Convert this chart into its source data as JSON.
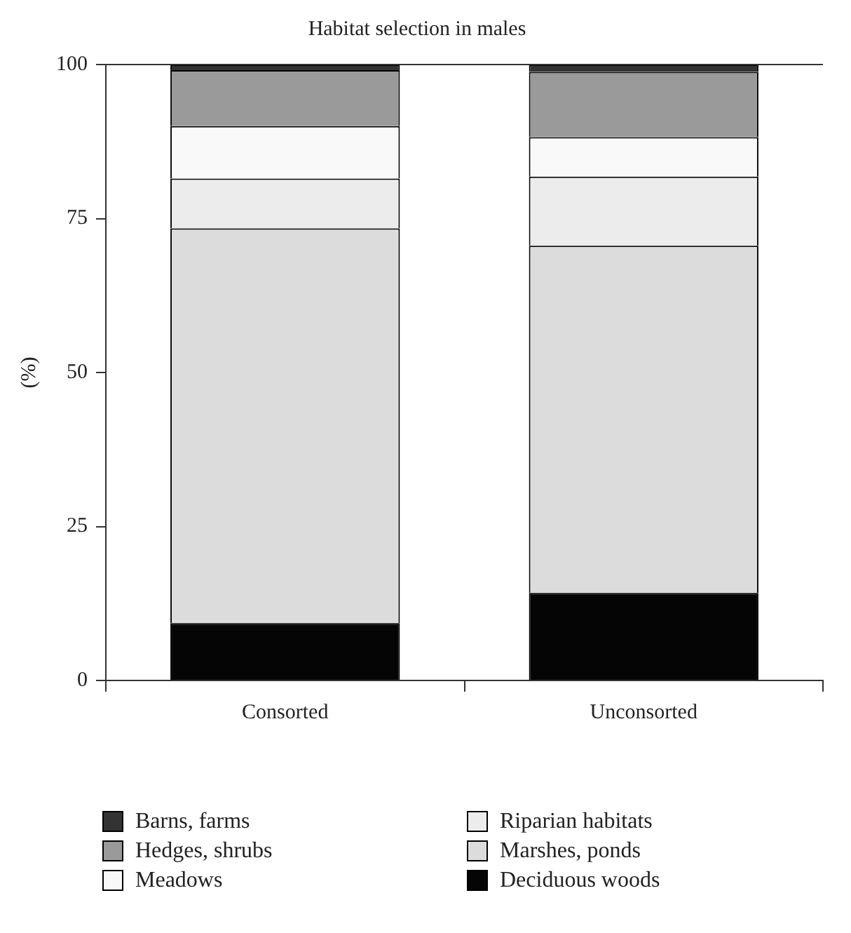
{
  "chart_data": {
    "type": "bar",
    "title": "Habitat selection in males",
    "ylabel": "(%)",
    "categories": [
      "Consorted",
      "Unconsorted"
    ],
    "stacked": true,
    "ylim": [
      0,
      100
    ],
    "yticks": [
      0,
      25,
      50,
      75,
      100
    ],
    "grid": false,
    "legend": "bottom",
    "series": [
      {
        "name": "Deciduous woods",
        "color": "#050505",
        "values": [
          9.3,
          14.2
        ]
      },
      {
        "name": "Marshes, ponds",
        "color": "#dcdcdc",
        "values": [
          64.1,
          56.4
        ]
      },
      {
        "name": "Riparian habitats",
        "color": "#ececec",
        "values": [
          8.1,
          11.2
        ]
      },
      {
        "name": "Meadows",
        "color": "#f9f9f9",
        "values": [
          8.5,
          6.4
        ]
      },
      {
        "name": "Hedges, shrubs",
        "color": "#9a9a9a",
        "values": [
          9.1,
          10.6
        ]
      },
      {
        "name": "Barns, farms",
        "color": "#333333",
        "values": [
          0.9,
          1.2
        ]
      }
    ]
  }
}
